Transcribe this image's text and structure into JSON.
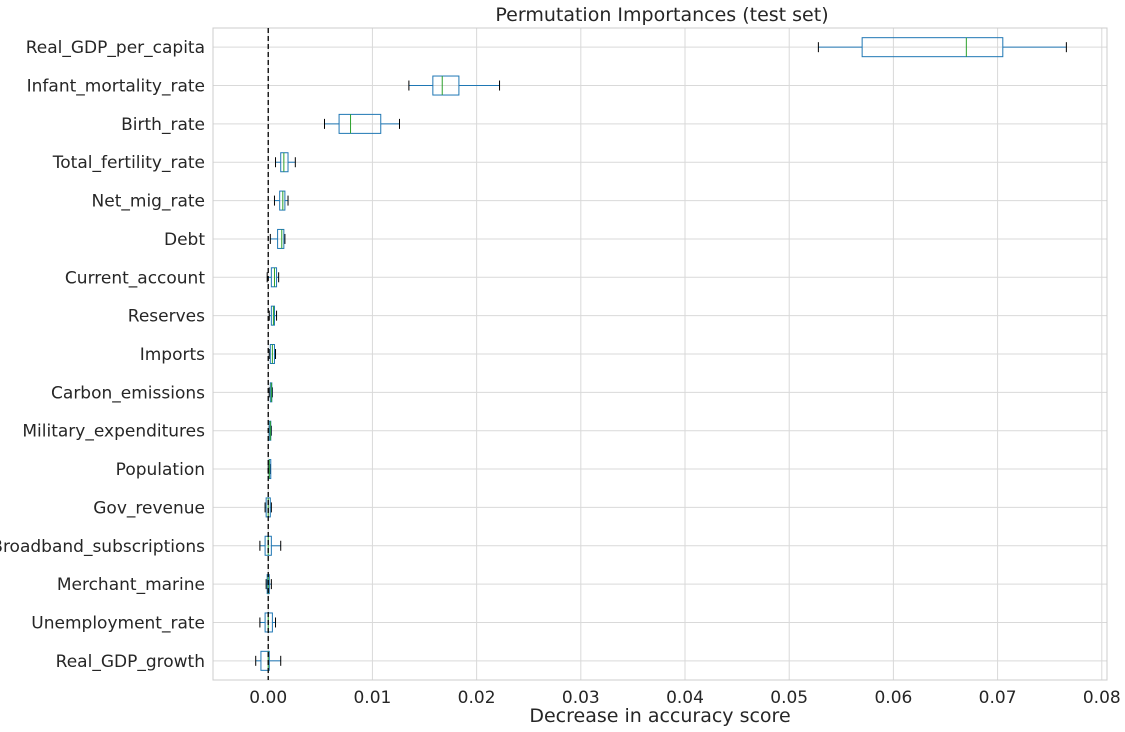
{
  "chart_data": {
    "type": "boxplot",
    "orientation": "horizontal",
    "title": "Permutation Importances (test set)",
    "xlabel": "Decrease in accuracy score",
    "ylabel": "",
    "xlim": [
      -0.0053,
      0.0805
    ],
    "xticks": [
      0.0,
      0.01,
      0.02,
      0.03,
      0.04,
      0.05,
      0.06,
      0.07,
      0.08
    ],
    "xtick_labels": [
      "0.00",
      "0.01",
      "0.02",
      "0.03",
      "0.04",
      "0.05",
      "0.06",
      "0.07",
      "0.08"
    ],
    "grid": true,
    "reference_line": {
      "x": 0.0,
      "style": "dashed",
      "color": "#000000"
    },
    "colors": {
      "box": "#1f77b4",
      "median": "#2ca02c",
      "whisker": "#1f77b4",
      "grid": "#d9d9d9",
      "frame": "#cccccc"
    },
    "categories": [
      "Real_GDP_per_capita",
      "Infant_mortality_rate",
      "Birth_rate",
      "Total_fertility_rate",
      "Net_mig_rate",
      "Debt",
      "Current_account",
      "Reserves",
      "Imports",
      "Carbon_emissions",
      "Military_expenditures",
      "Population",
      "Gov_revenue",
      "Broadband_subscriptions",
      "Merchant_marine",
      "Unemployment_rate",
      "Real_GDP_growth"
    ],
    "boxes": [
      {
        "min": 0.0528,
        "q1": 0.057,
        "median": 0.067,
        "q3": 0.0705,
        "max": 0.0766
      },
      {
        "min": 0.0135,
        "q1": 0.0158,
        "median": 0.0167,
        "q3": 0.0183,
        "max": 0.0222
      },
      {
        "min": 0.0054,
        "q1": 0.0068,
        "median": 0.0079,
        "q3": 0.0108,
        "max": 0.0126
      },
      {
        "min": 0.0007,
        "q1": 0.0012,
        "median": 0.0015,
        "q3": 0.0019,
        "max": 0.0026
      },
      {
        "min": 0.0006,
        "q1": 0.0011,
        "median": 0.0014,
        "q3": 0.0016,
        "max": 0.0019
      },
      {
        "min": 0.0002,
        "q1": 0.0009,
        "median": 0.0013,
        "q3": 0.0015,
        "max": 0.0016
      },
      {
        "min": -0.0001,
        "q1": 0.0003,
        "median": 0.0006,
        "q3": 0.0008,
        "max": 0.001
      },
      {
        "min": 0.0001,
        "q1": 0.0003,
        "median": 0.0005,
        "q3": 0.0006,
        "max": 0.0008
      },
      {
        "min": 0.0001,
        "q1": 0.0002,
        "median": 0.0004,
        "q3": 0.0006,
        "max": 0.0007
      },
      {
        "min": 0.0001,
        "q1": 0.0002,
        "median": 0.0003,
        "q3": 0.0003,
        "max": 0.0004
      },
      {
        "min": 0.0001,
        "q1": 0.0001,
        "median": 0.0002,
        "q3": 0.0002,
        "max": 0.0003
      },
      {
        "min": 0.0,
        "q1": 0.0001,
        "median": 0.0001,
        "q3": 0.0001,
        "max": 0.0002
      },
      {
        "min": -0.0003,
        "q1": -0.0002,
        "median": 0.0,
        "q3": 0.0002,
        "max": 0.0003
      },
      {
        "min": -0.0008,
        "q1": -0.0003,
        "median": 0.0,
        "q3": 0.0003,
        "max": 0.0012
      },
      {
        "min": -0.0002,
        "q1": -0.0001,
        "median": 0.0,
        "q3": 0.0001,
        "max": 0.0003
      },
      {
        "min": -0.0008,
        "q1": -0.0003,
        "median": 0.0,
        "q3": 0.0004,
        "max": 0.0007
      },
      {
        "min": -0.0012,
        "q1": -0.0007,
        "median": 0.0,
        "q3": 0.0001,
        "max": 0.0012
      }
    ]
  }
}
